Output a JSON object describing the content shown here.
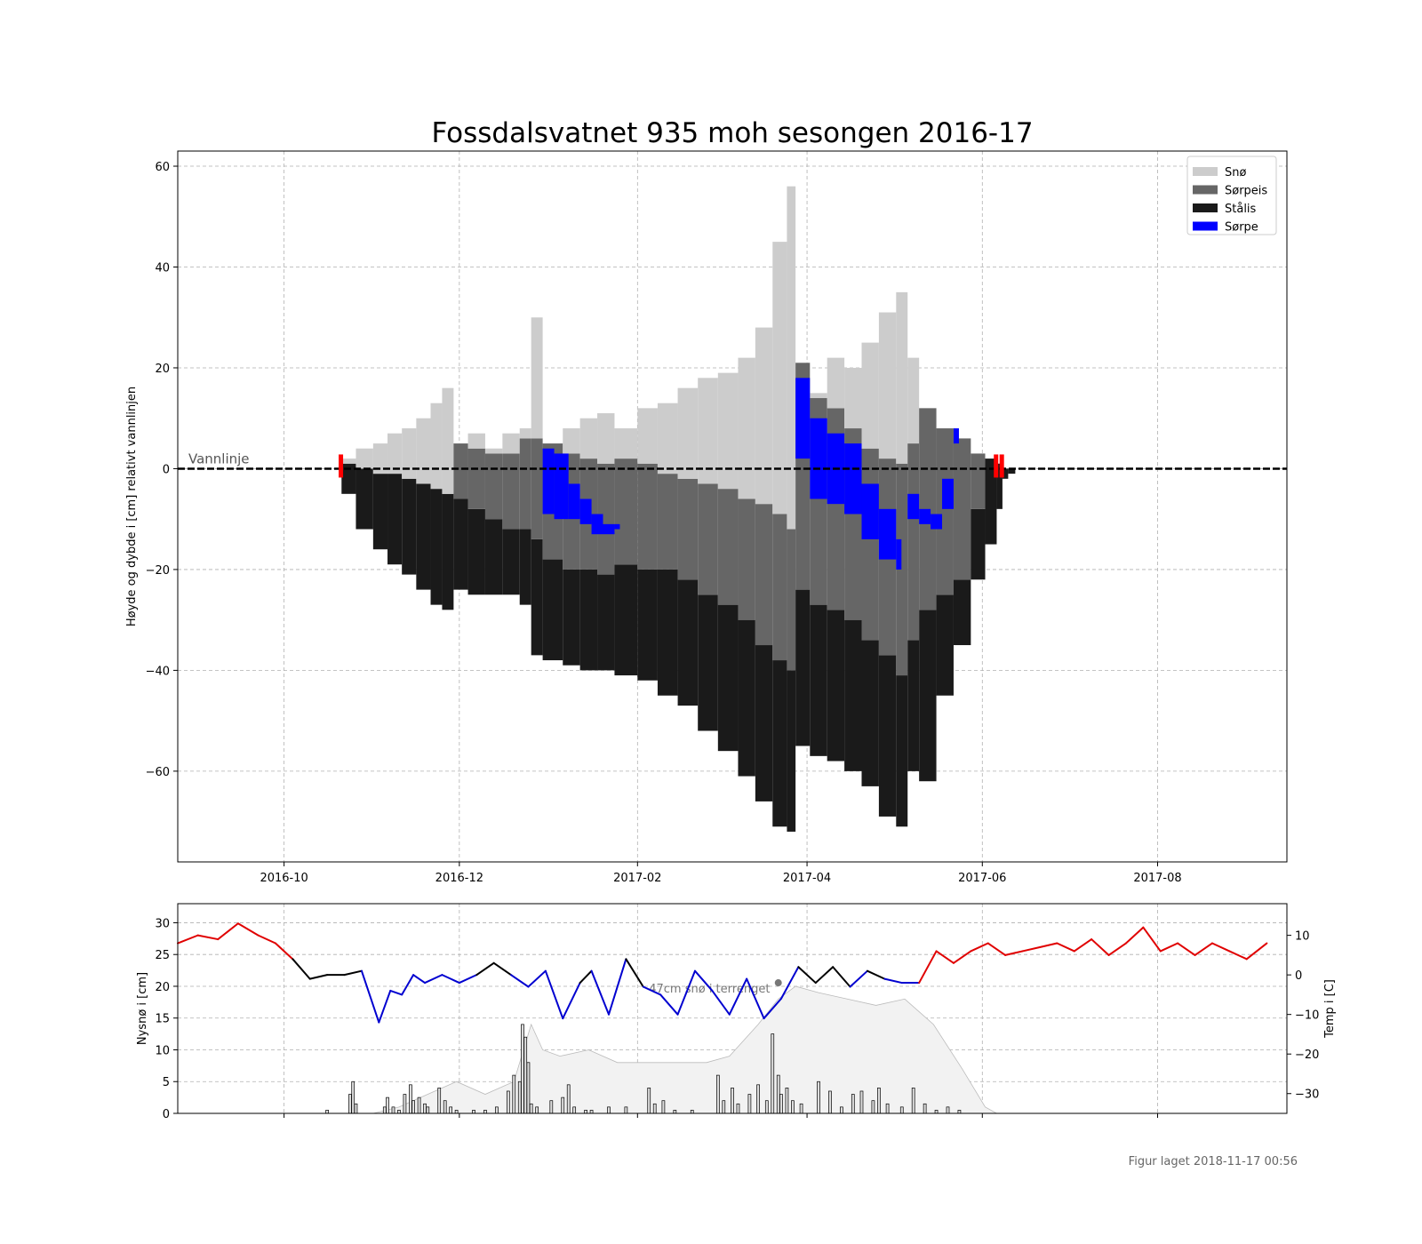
{
  "title": "Fossdalsvatnet 935 moh sesongen 2016-17",
  "footer": "Figur laget 2018-11-17 00:56",
  "colors": {
    "snow": "#cccccc",
    "slush_ice": "#666666",
    "black_ice": "#1a1a1a",
    "slush": "#0000ff",
    "warm": "#e00000",
    "cold": "#0000d0",
    "neutral": "#000000",
    "snow_depth_fill": "#f2f2f2",
    "waterline_marker": "#ff0000"
  },
  "chart_data": [
    {
      "type": "area",
      "title": "Fossdalsvatnet 935 moh sesongen 2016-17",
      "ylabel": "Høyde og dybde i [cm] relativt vannlinjen",
      "xlabel": "",
      "x_ticks": [
        "2016-10",
        "2016-12",
        "2017-02",
        "2017-04",
        "2017-06",
        "2017-08"
      ],
      "y_ticks": [
        60,
        40,
        20,
        0,
        -20,
        -40,
        -60
      ],
      "xlim": [
        "2016-08-25",
        "2017-09-15"
      ],
      "ylim": [
        -78,
        63
      ],
      "grid": true,
      "legend_position": "top-right",
      "legend": [
        "Snø",
        "Sørpeis",
        "Stålis",
        "Sørpe"
      ],
      "waterline_label": "Vannlinje",
      "waterline_markers": [
        "2016-10-20",
        "2017-06-05",
        "2017-06-07"
      ],
      "x": [
        "2016-10-21",
        "2016-10-26",
        "2016-11-01",
        "2016-11-06",
        "2016-11-11",
        "2016-11-16",
        "2016-11-21",
        "2016-11-25",
        "2016-11-29",
        "2016-12-04",
        "2016-12-10",
        "2016-12-16",
        "2016-12-22",
        "2016-12-26",
        "2016-12-30",
        "2017-01-06",
        "2017-01-12",
        "2017-01-18",
        "2017-01-24",
        "2017-02-01",
        "2017-02-08",
        "2017-02-15",
        "2017-02-22",
        "2017-03-01",
        "2017-03-08",
        "2017-03-14",
        "2017-03-20",
        "2017-03-25",
        "2017-03-28",
        "2017-04-02",
        "2017-04-08",
        "2017-04-14",
        "2017-04-20",
        "2017-04-26",
        "2017-05-02",
        "2017-05-06",
        "2017-05-10",
        "2017-05-16",
        "2017-05-22",
        "2017-05-28",
        "2017-06-02",
        "2017-06-06",
        "2017-06-08",
        "2017-06-10"
      ],
      "series": [
        {
          "name": "Snø",
          "top": [
            2,
            4,
            5,
            7,
            8,
            10,
            13,
            16,
            0,
            7,
            4,
            7,
            8,
            30,
            0,
            8,
            10,
            11,
            8,
            12,
            13,
            16,
            18,
            19,
            22,
            28,
            45,
            56,
            0,
            15,
            22,
            20,
            25,
            31,
            35,
            22,
            7,
            0,
            0,
            0,
            0,
            0,
            0,
            0
          ]
        },
        {
          "name": "Sørpeis",
          "top": [
            0,
            0,
            0,
            0,
            0,
            0,
            0,
            0,
            5,
            4,
            3,
            3,
            6,
            6,
            5,
            3,
            2,
            1,
            2,
            1,
            -1,
            -2,
            -3,
            -4,
            -6,
            -7,
            -9,
            -12,
            21,
            14,
            12,
            8,
            4,
            2,
            1,
            5,
            12,
            8,
            6,
            3,
            0,
            0,
            0,
            0
          ]
        },
        {
          "name": "Stålis",
          "top": [
            1,
            0,
            -1,
            -1,
            -2,
            -3,
            -4,
            -5,
            -6,
            -8,
            -10,
            -12,
            -12,
            -14,
            -18,
            -20,
            -20,
            -21,
            -19,
            -20,
            -20,
            -22,
            -25,
            -27,
            -30,
            -35,
            -38,
            -40,
            -24,
            -27,
            -28,
            -30,
            -34,
            -37,
            -41,
            -34,
            -28,
            -25,
            -22,
            -8,
            2,
            1,
            0,
            0
          ]
        },
        {
          "name": "Stålis_bottom",
          "top": [
            -5,
            -12,
            -16,
            -19,
            -21,
            -24,
            -27,
            -28,
            -24,
            -25,
            -25,
            -25,
            -27,
            -37,
            -38,
            -39,
            -40,
            -40,
            -41,
            -42,
            -45,
            -47,
            -52,
            -56,
            -61,
            -66,
            -71,
            -72,
            -55,
            -57,
            -58,
            -60,
            -63,
            -69,
            -71,
            -60,
            -62,
            -45,
            -35,
            -22,
            -15,
            -8,
            -2,
            -1
          ]
        },
        {
          "name": "Sørpe",
          "segments": [
            {
              "x": [
                "2016-12-30",
                "2017-01-03",
                "2017-01-08",
                "2017-01-12",
                "2017-01-16",
                "2017-01-20",
                "2017-01-24"
              ],
              "top": [
                4,
                3,
                -3,
                -6,
                -9,
                -11,
                -11
              ],
              "bottom": [
                -9,
                -10,
                -10,
                -11,
                -13,
                -13,
                -12
              ]
            },
            {
              "x": [
                "2017-03-28",
                "2017-04-02",
                "2017-04-08",
                "2017-04-14",
                "2017-04-20",
                "2017-04-26",
                "2017-05-02"
              ],
              "top": [
                18,
                10,
                7,
                5,
                -3,
                -8,
                -14
              ],
              "bottom": [
                2,
                -6,
                -7,
                -9,
                -14,
                -18,
                -20
              ]
            },
            {
              "x": [
                "2017-05-06",
                "2017-05-10",
                "2017-05-14",
                "2017-05-18",
                "2017-05-22"
              ],
              "top": [
                -5,
                -8,
                -9,
                -2,
                8
              ],
              "bottom": [
                -10,
                -11,
                -12,
                -8,
                5
              ]
            }
          ]
        }
      ]
    },
    {
      "type": "line",
      "title": "",
      "ylabel": "Nysnø i [cm]",
      "y2label": "Temp i [C]",
      "y_ticks": [
        30,
        25,
        20,
        15,
        10,
        5,
        0
      ],
      "y2_ticks": [
        10,
        0,
        -10,
        -20,
        -30
      ],
      "ylim": [
        0,
        33
      ],
      "y2lim": [
        -35,
        18
      ],
      "annotation": "47cm snø i terrenget",
      "grid": true,
      "new_snow": {
        "x": [
          "2016-10-16",
          "2016-10-24",
          "2016-10-25",
          "2016-10-26",
          "2016-11-05",
          "2016-11-06",
          "2016-11-08",
          "2016-11-10",
          "2016-11-12",
          "2016-11-14",
          "2016-11-15",
          "2016-11-17",
          "2016-11-19",
          "2016-11-20",
          "2016-11-24",
          "2016-11-26",
          "2016-11-28",
          "2016-11-30",
          "2016-12-06",
          "2016-12-10",
          "2016-12-14",
          "2016-12-18",
          "2016-12-20",
          "2016-12-22",
          "2016-12-23",
          "2016-12-24",
          "2016-12-25",
          "2016-12-26",
          "2016-12-28",
          "2017-01-02",
          "2017-01-06",
          "2017-01-08",
          "2017-01-10",
          "2017-01-14",
          "2017-01-16",
          "2017-01-22",
          "2017-01-28",
          "2017-02-05",
          "2017-02-07",
          "2017-02-10",
          "2017-02-14",
          "2017-02-20",
          "2017-03-01",
          "2017-03-03",
          "2017-03-06",
          "2017-03-08",
          "2017-03-12",
          "2017-03-15",
          "2017-03-18",
          "2017-03-20",
          "2017-03-22",
          "2017-03-23",
          "2017-03-25",
          "2017-03-27",
          "2017-03-30",
          "2017-04-05",
          "2017-04-09",
          "2017-04-13",
          "2017-04-17",
          "2017-04-20",
          "2017-04-24",
          "2017-04-26",
          "2017-04-29",
          "2017-05-04",
          "2017-05-08",
          "2017-05-12",
          "2017-05-16",
          "2017-05-20",
          "2017-05-24"
        ],
        "values": [
          0.5,
          3,
          5,
          1.5,
          1,
          2.5,
          1,
          0.5,
          3,
          4.5,
          2,
          2.5,
          1.5,
          1,
          4,
          2,
          1,
          0.5,
          0.5,
          0.5,
          1,
          3.5,
          6,
          5,
          14,
          12,
          8,
          1.5,
          1,
          2,
          2.5,
          4.5,
          1,
          0.5,
          0.5,
          1,
          1,
          4,
          1.5,
          2,
          0.5,
          0.5,
          6,
          2,
          4,
          1.5,
          3,
          4.5,
          2,
          12.5,
          6,
          3,
          4,
          2,
          1.5,
          5,
          3.5,
          1,
          3,
          3.5,
          2,
          4,
          1.5,
          1,
          4,
          1.5,
          0.5,
          1,
          0.5
        ]
      },
      "snow_depth": {
        "x": [
          "2016-11-01",
          "2016-11-10",
          "2016-11-20",
          "2016-11-30",
          "2016-12-10",
          "2016-12-20",
          "2016-12-26",
          "2016-12-30",
          "2017-01-05",
          "2017-01-15",
          "2017-01-25",
          "2017-02-05",
          "2017-02-15",
          "2017-02-25",
          "2017-03-05",
          "2017-03-15",
          "2017-03-22",
          "2017-03-28",
          "2017-04-05",
          "2017-04-15",
          "2017-04-25",
          "2017-05-05",
          "2017-05-15",
          "2017-05-25",
          "2017-06-02",
          "2017-06-06"
        ],
        "values": [
          0,
          1,
          3,
          5,
          3,
          5,
          14,
          10,
          9,
          10,
          8,
          8,
          8,
          8,
          9,
          14,
          18,
          20,
          19,
          18,
          17,
          18,
          14,
          7,
          1,
          0
        ]
      },
      "temperature": {
        "x": [
          "2016-08-25",
          "2016-09-01",
          "2016-09-08",
          "2016-09-15",
          "2016-09-22",
          "2016-09-28",
          "2016-10-04",
          "2016-10-10",
          "2016-10-16",
          "2016-10-22",
          "2016-10-28",
          "2016-11-03",
          "2016-11-07",
          "2016-11-11",
          "2016-11-15",
          "2016-11-19",
          "2016-11-25",
          "2016-12-01",
          "2016-12-07",
          "2016-12-13",
          "2016-12-19",
          "2016-12-25",
          "2016-12-31",
          "2017-01-06",
          "2017-01-12",
          "2017-01-16",
          "2017-01-22",
          "2017-01-28",
          "2017-02-03",
          "2017-02-09",
          "2017-02-15",
          "2017-02-21",
          "2017-02-27",
          "2017-03-05",
          "2017-03-11",
          "2017-03-17",
          "2017-03-23",
          "2017-03-29",
          "2017-04-04",
          "2017-04-10",
          "2017-04-16",
          "2017-04-22",
          "2017-04-28",
          "2017-05-04",
          "2017-05-10",
          "2017-05-16",
          "2017-05-22",
          "2017-05-28",
          "2017-06-03",
          "2017-06-09",
          "2017-06-15",
          "2017-06-21",
          "2017-06-27",
          "2017-07-03",
          "2017-07-09",
          "2017-07-15",
          "2017-07-21",
          "2017-07-27",
          "2017-08-02",
          "2017-08-08",
          "2017-08-14",
          "2017-08-20",
          "2017-08-26",
          "2017-09-01",
          "2017-09-08"
        ],
        "values": [
          8,
          10,
          9,
          13,
          10,
          8,
          4,
          -1,
          0,
          0,
          1,
          -12,
          -4,
          -5,
          0,
          -2,
          0,
          -2,
          0,
          3,
          0,
          -3,
          1,
          -11,
          -2,
          1,
          -10,
          4,
          -3,
          -5,
          -10,
          1,
          -4,
          -10,
          -1,
          -11,
          -6,
          2,
          -2,
          2,
          -3,
          1,
          -1,
          -2,
          -2,
          6,
          3,
          6,
          8,
          5,
          6,
          7,
          8,
          6,
          9,
          5,
          8,
          12,
          6,
          8,
          5,
          8,
          6,
          4,
          8
        ]
      }
    }
  ]
}
